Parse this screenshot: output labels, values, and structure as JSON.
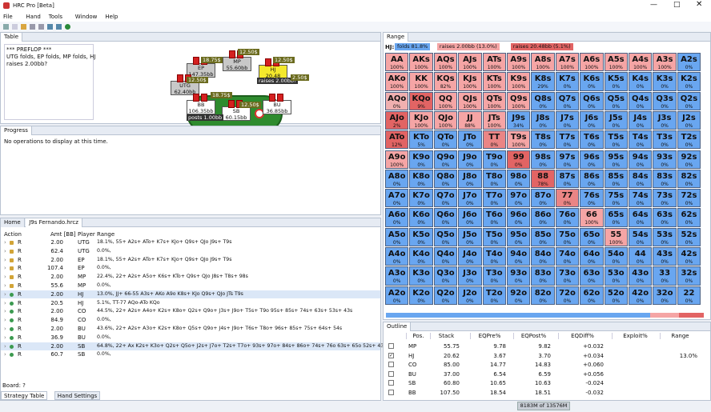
{
  "window": {
    "title": "HRC Pro [Beta]",
    "menu": [
      "File",
      "Hand",
      "Tools",
      "Window",
      "Help"
    ]
  },
  "table_panel": {
    "tab": "Table",
    "log": [
      "*** PREFLOP ***",
      "UTG folds, EP folds, MP folds, HJ",
      "raises 2.00bb?"
    ],
    "seats": [
      {
        "pos": "MP",
        "stack": "55.60bb"
      },
      {
        "pos": "EP",
        "stack": "147.35bb"
      },
      {
        "pos": "UTG",
        "stack": "62.40bb"
      },
      {
        "pos": "HJ",
        "stack": "20.48"
      },
      {
        "pos": "BB",
        "stack": "106.35bb"
      },
      {
        "pos": "SB",
        "stack": "60.15bb"
      },
      {
        "pos": "BU",
        "stack": "36.85bb"
      }
    ],
    "pot_label": "Pot:",
    "pot": "2.70bb",
    "hj_action": "raises 2.00bb?",
    "bb_action": "posts 1.00bb",
    "chips": [
      "18.75$",
      "12.50$",
      "12.50$",
      "2.50$",
      "12.50$",
      "18.75$",
      "12.50$"
    ]
  },
  "progress_panel": {
    "tab": "Progress",
    "message": "No operations to display at this time."
  },
  "hand_panel": {
    "tabs": [
      "Home",
      "J9s Fernando.hrcz"
    ],
    "columns": [
      "Action",
      "Amt [BB]",
      "Player",
      "Range"
    ],
    "rows": [
      {
        "icon": "#d2a437",
        "action": "R",
        "amt": "2.00",
        "player": "UTG",
        "range": "18.1%, 55+ A2s+ ATo+ K7s+ KJo+ Q9s+ QJo J9s+ T9s"
      },
      {
        "icon": "#d2a437",
        "action": "R",
        "amt": "62.4",
        "player": "UTG",
        "range": "0.0%,"
      },
      {
        "icon": "#d2a437",
        "action": "R",
        "amt": "2.00",
        "player": "EP",
        "range": "18.1%, 55+ A2s+ ATo+ K7s+ KJo+ Q9s+ QJo J9s+ T9s"
      },
      {
        "icon": "#d2a437",
        "action": "R",
        "amt": "107.4",
        "player": "EP",
        "range": "0.0%,"
      },
      {
        "icon": "#d2a437",
        "action": "R",
        "amt": "2.00",
        "player": "MP",
        "range": "22.4%, 22+ A2s+ A5o+ K6s+ KTo+ Q9s+ QJo J8s+ T8s+ 98s"
      },
      {
        "icon": "#d2a437",
        "action": "R",
        "amt": "55.6",
        "player": "MP",
        "range": "0.0%,"
      },
      {
        "icon": "#3c9a50",
        "action": "R",
        "amt": "2.00",
        "player": "HJ",
        "range": "13.0%, JJ+ 66-55 A3s+ AKo A9o K8s+ KJo Q9s+ QJo JTs T9s"
      },
      {
        "icon": "#3c9a50",
        "action": "R",
        "amt": "20.5",
        "player": "HJ",
        "range": "5.1%, TT-77 AQo-ATo KQo"
      },
      {
        "icon": "#3c9a50",
        "action": "R",
        "amt": "2.00",
        "player": "CO",
        "range": "44.5%, 22+ A2s+ A4o+ K2s+ K8o+ Q2s+ Q9o+ J3s+ J9o+ T5s+ T9o 95s+ 85s+ 74s+ 63s+ 53s+ 43s"
      },
      {
        "icon": "#3c9a50",
        "action": "R",
        "amt": "84.9",
        "player": "CO",
        "range": "0.0%,"
      },
      {
        "icon": "#3c9a50",
        "action": "R",
        "amt": "2.00",
        "player": "BU",
        "range": "43.6%, 22+ A2s+ A3o+ K2s+ K8o+ Q5s+ Q9o+ J4s+ J9o+ T6s+ T8o+ 96s+ 85s+ 75s+ 64s+ 54s"
      },
      {
        "icon": "#3c9a50",
        "action": "R",
        "amt": "36.9",
        "player": "BU",
        "range": "0.0%,"
      },
      {
        "icon": "#3c9a50",
        "action": "R",
        "amt": "2.00",
        "player": "SB",
        "range": "64.8%, 22+ Ax K2s+ K3o+ Q2s+ Q5o+ J2s+ J7o+ T2s+ T7o+ 93s+ 97o+ 84s+ 86o+ 74s+ 76o 63s+ 65o 52s+ 43s"
      },
      {
        "icon": "#3c9a50",
        "action": "R",
        "amt": "60.7",
        "player": "SB",
        "range": "0.0%,"
      }
    ],
    "board": "Board: ?",
    "bottom_tabs": [
      "Strategy Table",
      "Hand Settings"
    ]
  },
  "range_panel": {
    "tab": "Range",
    "player": "HJ:",
    "legend": [
      {
        "label": "folds 81.8%",
        "color": "#69a6f0"
      },
      {
        "label": "raises 2.00bb (13.0%)",
        "color": "#f5a5a5"
      },
      {
        "label": "raises 20.48bb (5.1%)",
        "color": "#e26464"
      }
    ],
    "cells": [
      [
        [
          "AA",
          "100%",
          "#f5a5a5"
        ],
        [
          "AKs",
          "100%",
          "#f5a5a5"
        ],
        [
          "AQs",
          "100%",
          "#f5a5a5"
        ],
        [
          "AJs",
          "100%",
          "#f5a5a5"
        ],
        [
          "ATs",
          "100%",
          "#f5a5a5"
        ],
        [
          "A9s",
          "100%",
          "#f5a5a5"
        ],
        [
          "A8s",
          "100%",
          "#f5a5a5"
        ],
        [
          "A7s",
          "100%",
          "#f5a5a5"
        ],
        [
          "A6s",
          "100%",
          "#f5a5a5"
        ],
        [
          "A5s",
          "100%",
          "#f5a5a5"
        ],
        [
          "A4s",
          "100%",
          "#f5a5a5"
        ],
        [
          "A3s",
          "100%",
          "#f5a5a5"
        ],
        [
          "A2s",
          "0%",
          "#69a6f0"
        ]
      ],
      [
        [
          "AKo",
          "100%",
          "#f5a5a5"
        ],
        [
          "KK",
          "100%",
          "#f5a5a5"
        ],
        [
          "KQs",
          "82%",
          "#f5a5a5"
        ],
        [
          "KJs",
          "100%",
          "#f5a5a5"
        ],
        [
          "KTs",
          "100%",
          "#f5a5a5"
        ],
        [
          "K9s",
          "100%",
          "#f5a5a5"
        ],
        [
          "K8s",
          "29%",
          "#69a6f0"
        ],
        [
          "K7s",
          "0%",
          "#69a6f0"
        ],
        [
          "K6s",
          "0%",
          "#69a6f0"
        ],
        [
          "K5s",
          "0%",
          "#69a6f0"
        ],
        [
          "K4s",
          "0%",
          "#69a6f0"
        ],
        [
          "K3s",
          "0%",
          "#69a6f0"
        ],
        [
          "K2s",
          "0%",
          "#69a6f0"
        ]
      ],
      [
        [
          "AQo",
          "0%",
          "#f0b0b0"
        ],
        [
          "KQo",
          "9%",
          "#e26464"
        ],
        [
          "QQ",
          "100%",
          "#f5a5a5"
        ],
        [
          "QJs",
          "100%",
          "#f5a5a5"
        ],
        [
          "QTs",
          "100%",
          "#f5a5a5"
        ],
        [
          "Q9s",
          "100%",
          "#f5a5a5"
        ],
        [
          "Q8s",
          "0%",
          "#69a6f0"
        ],
        [
          "Q7s",
          "0%",
          "#69a6f0"
        ],
        [
          "Q6s",
          "0%",
          "#69a6f0"
        ],
        [
          "Q5s",
          "0%",
          "#69a6f0"
        ],
        [
          "Q4s",
          "0%",
          "#69a6f0"
        ],
        [
          "Q3s",
          "0%",
          "#69a6f0"
        ],
        [
          "Q2s",
          "0%",
          "#69a6f0"
        ]
      ],
      [
        [
          "AJo",
          "2%",
          "#e26464"
        ],
        [
          "KJo",
          "100%",
          "#f5a5a5"
        ],
        [
          "QJo",
          "100%",
          "#f5a5a5"
        ],
        [
          "JJ",
          "88%",
          "#f5a5a5"
        ],
        [
          "JTs",
          "100%",
          "#f5a5a5"
        ],
        [
          "J9s",
          "34%",
          "#69a6f0"
        ],
        [
          "J8s",
          "0%",
          "#69a6f0"
        ],
        [
          "J7s",
          "0%",
          "#69a6f0"
        ],
        [
          "J6s",
          "0%",
          "#69a6f0"
        ],
        [
          "J5s",
          "0%",
          "#69a6f0"
        ],
        [
          "J4s",
          "0%",
          "#69a6f0"
        ],
        [
          "J3s",
          "0%",
          "#69a6f0"
        ],
        [
          "J2s",
          "0%",
          "#69a6f0"
        ]
      ],
      [
        [
          "ATo",
          "12%",
          "#e26464"
        ],
        [
          "KTo",
          "5%",
          "#69a6f0"
        ],
        [
          "QTo",
          "0%",
          "#69a6f0"
        ],
        [
          "JTo",
          "0%",
          "#69a6f0"
        ],
        [
          "TT",
          "0%",
          "#ea8585"
        ],
        [
          "T9s",
          "100%",
          "#f5a5a5"
        ],
        [
          "T8s",
          "0%",
          "#69a6f0"
        ],
        [
          "T7s",
          "0%",
          "#69a6f0"
        ],
        [
          "T6s",
          "0%",
          "#69a6f0"
        ],
        [
          "T5s",
          "0%",
          "#69a6f0"
        ],
        [
          "T4s",
          "0%",
          "#69a6f0"
        ],
        [
          "T3s",
          "0%",
          "#69a6f0"
        ],
        [
          "T2s",
          "0%",
          "#69a6f0"
        ]
      ],
      [
        [
          "A9o",
          "100%",
          "#f5a5a5"
        ],
        [
          "K9o",
          "0%",
          "#69a6f0"
        ],
        [
          "Q9o",
          "0%",
          "#69a6f0"
        ],
        [
          "J9o",
          "0%",
          "#69a6f0"
        ],
        [
          "T9o",
          "0%",
          "#69a6f0"
        ],
        [
          "99",
          "0%",
          "#e26464"
        ],
        [
          "98s",
          "0%",
          "#69a6f0"
        ],
        [
          "97s",
          "0%",
          "#69a6f0"
        ],
        [
          "96s",
          "0%",
          "#69a6f0"
        ],
        [
          "95s",
          "0%",
          "#69a6f0"
        ],
        [
          "94s",
          "0%",
          "#69a6f0"
        ],
        [
          "93s",
          "0%",
          "#69a6f0"
        ],
        [
          "92s",
          "0%",
          "#69a6f0"
        ]
      ],
      [
        [
          "A8o",
          "0%",
          "#69a6f0"
        ],
        [
          "K8o",
          "0%",
          "#69a6f0"
        ],
        [
          "Q8o",
          "0%",
          "#69a6f0"
        ],
        [
          "J8o",
          "0%",
          "#69a6f0"
        ],
        [
          "T8o",
          "0%",
          "#69a6f0"
        ],
        [
          "98o",
          "0%",
          "#69a6f0"
        ],
        [
          "88",
          "78%",
          "#e26464"
        ],
        [
          "87s",
          "0%",
          "#69a6f0"
        ],
        [
          "86s",
          "0%",
          "#69a6f0"
        ],
        [
          "85s",
          "0%",
          "#69a6f0"
        ],
        [
          "84s",
          "0%",
          "#69a6f0"
        ],
        [
          "83s",
          "0%",
          "#69a6f0"
        ],
        [
          "82s",
          "0%",
          "#69a6f0"
        ]
      ],
      [
        [
          "A7o",
          "0%",
          "#69a6f0"
        ],
        [
          "K7o",
          "0%",
          "#69a6f0"
        ],
        [
          "Q7o",
          "0%",
          "#69a6f0"
        ],
        [
          "J7o",
          "0%",
          "#69a6f0"
        ],
        [
          "T7o",
          "0%",
          "#69a6f0"
        ],
        [
          "97o",
          "0%",
          "#69a6f0"
        ],
        [
          "87o",
          "0%",
          "#69a6f0"
        ],
        [
          "77",
          "0%",
          "#ea8585"
        ],
        [
          "76s",
          "0%",
          "#69a6f0"
        ],
        [
          "75s",
          "0%",
          "#69a6f0"
        ],
        [
          "74s",
          "0%",
          "#69a6f0"
        ],
        [
          "73s",
          "0%",
          "#69a6f0"
        ],
        [
          "72s",
          "0%",
          "#69a6f0"
        ]
      ],
      [
        [
          "A6o",
          "0%",
          "#69a6f0"
        ],
        [
          "K6o",
          "0%",
          "#69a6f0"
        ],
        [
          "Q6o",
          "0%",
          "#69a6f0"
        ],
        [
          "J6o",
          "0%",
          "#69a6f0"
        ],
        [
          "T6o",
          "0%",
          "#69a6f0"
        ],
        [
          "96o",
          "0%",
          "#69a6f0"
        ],
        [
          "86o",
          "0%",
          "#69a6f0"
        ],
        [
          "76o",
          "0%",
          "#69a6f0"
        ],
        [
          "66",
          "100%",
          "#f5a5a5"
        ],
        [
          "65s",
          "0%",
          "#69a6f0"
        ],
        [
          "64s",
          "0%",
          "#69a6f0"
        ],
        [
          "63s",
          "0%",
          "#69a6f0"
        ],
        [
          "62s",
          "0%",
          "#69a6f0"
        ]
      ],
      [
        [
          "A5o",
          "0%",
          "#69a6f0"
        ],
        [
          "K5o",
          "0%",
          "#69a6f0"
        ],
        [
          "Q5o",
          "0%",
          "#69a6f0"
        ],
        [
          "J5o",
          "0%",
          "#69a6f0"
        ],
        [
          "T5o",
          "0%",
          "#69a6f0"
        ],
        [
          "95o",
          "0%",
          "#69a6f0"
        ],
        [
          "85o",
          "0%",
          "#69a6f0"
        ],
        [
          "75o",
          "0%",
          "#69a6f0"
        ],
        [
          "65o",
          "0%",
          "#69a6f0"
        ],
        [
          "55",
          "100%",
          "#f5a5a5"
        ],
        [
          "54s",
          "0%",
          "#69a6f0"
        ],
        [
          "53s",
          "0%",
          "#69a6f0"
        ],
        [
          "52s",
          "0%",
          "#69a6f0"
        ]
      ],
      [
        [
          "A4o",
          "0%",
          "#69a6f0"
        ],
        [
          "K4o",
          "0%",
          "#69a6f0"
        ],
        [
          "Q4o",
          "0%",
          "#69a6f0"
        ],
        [
          "J4o",
          "0%",
          "#69a6f0"
        ],
        [
          "T4o",
          "0%",
          "#69a6f0"
        ],
        [
          "94o",
          "0%",
          "#69a6f0"
        ],
        [
          "84o",
          "0%",
          "#69a6f0"
        ],
        [
          "74o",
          "0%",
          "#69a6f0"
        ],
        [
          "64o",
          "0%",
          "#69a6f0"
        ],
        [
          "54o",
          "0%",
          "#69a6f0"
        ],
        [
          "44",
          "0%",
          "#69a6f0"
        ],
        [
          "43s",
          "0%",
          "#69a6f0"
        ],
        [
          "42s",
          "0%",
          "#69a6f0"
        ]
      ],
      [
        [
          "A3o",
          "0%",
          "#69a6f0"
        ],
        [
          "K3o",
          "0%",
          "#69a6f0"
        ],
        [
          "Q3o",
          "0%",
          "#69a6f0"
        ],
        [
          "J3o",
          "0%",
          "#69a6f0"
        ],
        [
          "T3o",
          "0%",
          "#69a6f0"
        ],
        [
          "93o",
          "0%",
          "#69a6f0"
        ],
        [
          "83o",
          "0%",
          "#69a6f0"
        ],
        [
          "73o",
          "0%",
          "#69a6f0"
        ],
        [
          "63o",
          "0%",
          "#69a6f0"
        ],
        [
          "53o",
          "0%",
          "#69a6f0"
        ],
        [
          "43o",
          "0%",
          "#69a6f0"
        ],
        [
          "33",
          "0%",
          "#69a6f0"
        ],
        [
          "32s",
          "0%",
          "#69a6f0"
        ]
      ],
      [
        [
          "A2o",
          "0%",
          "#69a6f0"
        ],
        [
          "K2o",
          "0%",
          "#69a6f0"
        ],
        [
          "Q2o",
          "0%",
          "#69a6f0"
        ],
        [
          "J2o",
          "0%",
          "#69a6f0"
        ],
        [
          "T2o",
          "0%",
          "#69a6f0"
        ],
        [
          "92o",
          "0%",
          "#69a6f0"
        ],
        [
          "82o",
          "0%",
          "#69a6f0"
        ],
        [
          "72o",
          "0%",
          "#69a6f0"
        ],
        [
          "62o",
          "0%",
          "#69a6f0"
        ],
        [
          "52o",
          "0%",
          "#69a6f0"
        ],
        [
          "42o",
          "0%",
          "#69a6f0"
        ],
        [
          "32o",
          "0%",
          "#69a6f0"
        ],
        [
          "22",
          "0%",
          "#69a6f0"
        ]
      ]
    ]
  },
  "outline_panel": {
    "tab": "Outline",
    "columns": [
      "Pos.",
      "Stack",
      "EQPre%",
      "EQPost%",
      "EQDiff%",
      "Exploit%",
      "Range"
    ],
    "rows": [
      {
        "checked": false,
        "cells": [
          "MP",
          "55.75",
          "9.78",
          "9.82",
          "+0.032",
          "",
          ""
        ]
      },
      {
        "checked": true,
        "cells": [
          "HJ",
          "20.62",
          "3.67",
          "3.70",
          "+0.034",
          "",
          "13.0%"
        ]
      },
      {
        "checked": false,
        "cells": [
          "CO",
          "85.00",
          "14.77",
          "14.83",
          "+0.060",
          "",
          ""
        ]
      },
      {
        "checked": false,
        "cells": [
          "BU",
          "37.00",
          "6.54",
          "6.59",
          "+0.056",
          "",
          ""
        ]
      },
      {
        "checked": false,
        "cells": [
          "SB",
          "60.80",
          "10.65",
          "10.63",
          "-0.024",
          "",
          ""
        ]
      },
      {
        "checked": false,
        "cells": [
          "BB",
          "107.50",
          "18.54",
          "18.51",
          "-0.032",
          "",
          ""
        ]
      }
    ],
    "memory": "8183M of 13576M"
  }
}
